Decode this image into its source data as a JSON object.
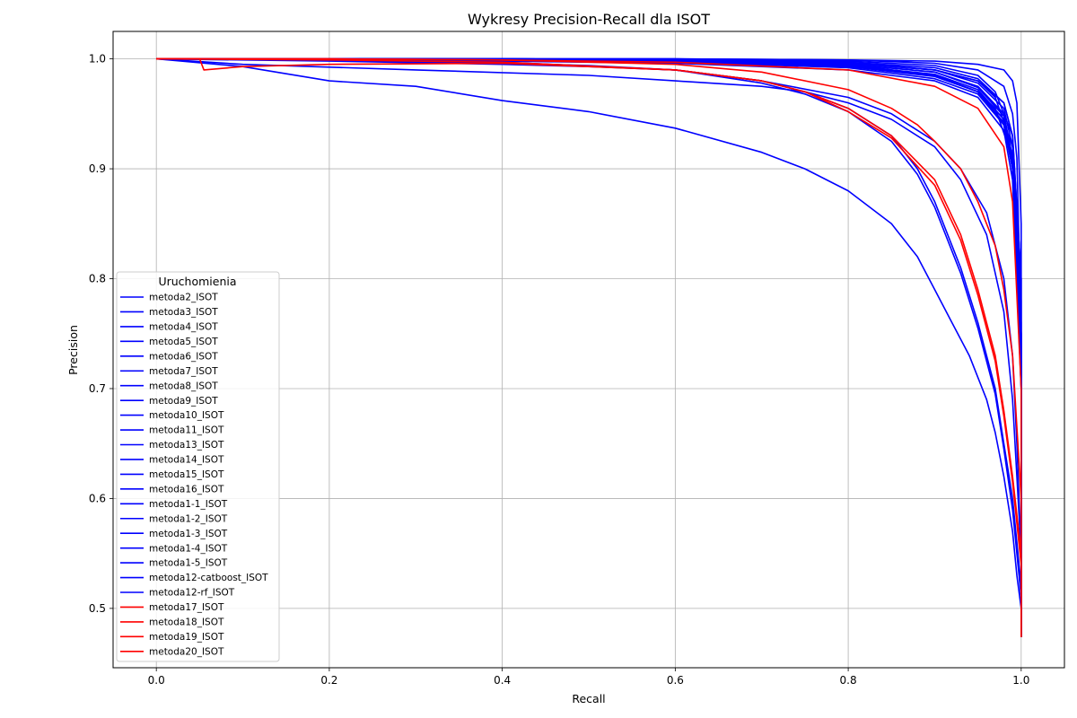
{
  "chart_data": {
    "type": "line",
    "title": "Wykresy Precision-Recall dla ISOT",
    "xlabel": "Recall",
    "ylabel": "Precision",
    "xlim": [
      -0.05,
      1.05
    ],
    "ylim": [
      0.446,
      1.025
    ],
    "xticks": [
      0.0,
      0.2,
      0.4,
      0.6,
      0.8,
      1.0
    ],
    "xtick_labels": [
      "0.0",
      "0.2",
      "0.4",
      "0.6",
      "0.8",
      "1.0"
    ],
    "yticks": [
      0.5,
      0.6,
      0.7,
      0.8,
      0.9,
      1.0
    ],
    "ytick_labels": [
      "0.5",
      "0.6",
      "0.7",
      "0.8",
      "0.9",
      "1.0"
    ],
    "grid": true,
    "legend": {
      "title": "Uruchomienia",
      "placement": "center-left"
    },
    "colors": {
      "blue": "#0000ff",
      "red": "#ff0000"
    },
    "series": [
      {
        "name": "metoda2_ISOT",
        "color": "#0000ff",
        "x": [
          0,
          0.2,
          0.4,
          0.6,
          0.7,
          0.8,
          0.85,
          0.9,
          0.93,
          0.96,
          0.98,
          0.99,
          0.995,
          1.0,
          1.0
        ],
        "y": [
          1.0,
          0.999,
          0.997,
          0.99,
          0.98,
          0.965,
          0.95,
          0.925,
          0.9,
          0.86,
          0.8,
          0.73,
          0.65,
          0.55,
          0.474
        ]
      },
      {
        "name": "metoda3_ISOT",
        "color": "#0000ff",
        "x": [
          0,
          0.2,
          0.4,
          0.6,
          0.7,
          0.8,
          0.9,
          0.95,
          0.98,
          0.99,
          1.0,
          1.0
        ],
        "y": [
          1.0,
          1.0,
          1.0,
          0.999,
          0.998,
          0.996,
          0.99,
          0.98,
          0.96,
          0.93,
          0.8,
          0.474
        ]
      },
      {
        "name": "metoda4_ISOT",
        "color": "#0000ff",
        "x": [
          0,
          0.2,
          0.4,
          0.6,
          0.8,
          0.9,
          0.95,
          0.98,
          0.99,
          0.995,
          1.0,
          1.0
        ],
        "y": [
          1.0,
          1.0,
          1.0,
          1.0,
          0.999,
          0.996,
          0.99,
          0.975,
          0.95,
          0.91,
          0.75,
          0.474
        ]
      },
      {
        "name": "metoda5_ISOT",
        "color": "#0000ff",
        "x": [
          0,
          0.2,
          0.4,
          0.6,
          0.8,
          0.9,
          0.95,
          0.97,
          0.99,
          1.0,
          1.0
        ],
        "y": [
          1.0,
          1.0,
          1.0,
          0.999,
          0.997,
          0.99,
          0.98,
          0.965,
          0.92,
          0.75,
          0.474
        ]
      },
      {
        "name": "metoda6_ISOT",
        "color": "#0000ff",
        "x": [
          0,
          0.2,
          0.4,
          0.6,
          0.8,
          0.9,
          0.95,
          0.98,
          0.99,
          1.0,
          1.0
        ],
        "y": [
          1.0,
          1.0,
          0.999,
          0.998,
          0.995,
          0.985,
          0.97,
          0.945,
          0.9,
          0.7,
          0.474
        ]
      },
      {
        "name": "metoda7_ISOT",
        "color": "#0000ff",
        "x": [
          0,
          0.1,
          0.3,
          0.5,
          0.6,
          0.7,
          0.75,
          0.8,
          0.85,
          0.9,
          0.93,
          0.96,
          0.98,
          0.99,
          1.0,
          1.0
        ],
        "y": [
          1.0,
          0.995,
          0.99,
          0.985,
          0.98,
          0.975,
          0.97,
          0.96,
          0.945,
          0.92,
          0.89,
          0.84,
          0.77,
          0.69,
          0.55,
          0.474
        ]
      },
      {
        "name": "metoda8_ISOT",
        "color": "#0000ff",
        "x": [
          0,
          0.2,
          0.4,
          0.6,
          0.8,
          0.9,
          0.95,
          0.98,
          0.99,
          1.0,
          1.0
        ],
        "y": [
          1.0,
          1.0,
          1.0,
          0.999,
          0.997,
          0.992,
          0.982,
          0.96,
          0.93,
          0.78,
          0.474
        ]
      },
      {
        "name": "metoda9_ISOT",
        "color": "#0000ff",
        "x": [
          0,
          0.2,
          0.4,
          0.6,
          0.8,
          0.9,
          0.95,
          0.98,
          0.99,
          1.0,
          1.0
        ],
        "y": [
          1.0,
          0.999,
          0.998,
          0.996,
          0.99,
          0.98,
          0.965,
          0.935,
          0.89,
          0.7,
          0.474
        ]
      },
      {
        "name": "metoda10_ISOT",
        "color": "#0000ff",
        "x": [
          0,
          0.2,
          0.4,
          0.6,
          0.8,
          0.9,
          0.95,
          0.97,
          0.99,
          1.0,
          1.0
        ],
        "y": [
          1.0,
          1.0,
          1.0,
          0.999,
          0.998,
          0.994,
          0.985,
          0.97,
          0.93,
          0.8,
          0.474
        ]
      },
      {
        "name": "metoda11_ISOT",
        "color": "#0000ff",
        "x": [
          0,
          0.2,
          0.4,
          0.6,
          0.8,
          0.9,
          0.95,
          0.98,
          0.99,
          1.0,
          1.0
        ],
        "y": [
          1.0,
          1.0,
          0.999,
          0.998,
          0.994,
          0.985,
          0.97,
          0.94,
          0.9,
          0.72,
          0.474
        ]
      },
      {
        "name": "metoda13_ISOT",
        "color": "#0000ff",
        "x": [
          0,
          0.1,
          0.2,
          0.3,
          0.4,
          0.5,
          0.6,
          0.7,
          0.75,
          0.8,
          0.85,
          0.88,
          0.9,
          0.92,
          0.94,
          0.96,
          0.97,
          0.98,
          0.99,
          0.995,
          1.0,
          1.0
        ],
        "y": [
          1.0,
          0.993,
          0.98,
          0.975,
          0.962,
          0.952,
          0.937,
          0.915,
          0.9,
          0.88,
          0.85,
          0.82,
          0.79,
          0.76,
          0.73,
          0.69,
          0.66,
          0.62,
          0.57,
          0.53,
          0.5,
          0.474
        ]
      },
      {
        "name": "metoda14_ISOT",
        "color": "#0000ff",
        "x": [
          0,
          0.2,
          0.4,
          0.6,
          0.8,
          0.9,
          0.95,
          0.98,
          0.99,
          0.995,
          1.0,
          1.0
        ],
        "y": [
          1.0,
          1.0,
          1.0,
          1.0,
          0.999,
          0.998,
          0.995,
          0.99,
          0.98,
          0.96,
          0.85,
          0.474
        ]
      },
      {
        "name": "metoda15_ISOT",
        "color": "#0000ff",
        "x": [
          0,
          0.2,
          0.4,
          0.6,
          0.8,
          0.9,
          0.95,
          0.97,
          0.99,
          1.0,
          1.0
        ],
        "y": [
          1.0,
          1.0,
          0.999,
          0.997,
          0.993,
          0.985,
          0.97,
          0.955,
          0.91,
          0.75,
          0.474
        ]
      },
      {
        "name": "metoda16_ISOT",
        "color": "#0000ff",
        "x": [
          0,
          0.2,
          0.4,
          0.6,
          0.8,
          0.9,
          0.95,
          0.98,
          0.99,
          1.0,
          1.0
        ],
        "y": [
          1.0,
          1.0,
          1.0,
          0.999,
          0.996,
          0.99,
          0.978,
          0.955,
          0.92,
          0.76,
          0.474
        ]
      },
      {
        "name": "metoda1-1_ISOT",
        "color": "#0000ff",
        "x": [
          0,
          0.2,
          0.4,
          0.6,
          0.8,
          0.9,
          0.95,
          0.98,
          0.99,
          1.0,
          1.0
        ],
        "y": [
          1.0,
          1.0,
          0.999,
          0.997,
          0.992,
          0.982,
          0.968,
          0.94,
          0.9,
          0.72,
          0.474
        ]
      },
      {
        "name": "metoda1-2_ISOT",
        "color": "#0000ff",
        "x": [
          0,
          0.2,
          0.4,
          0.6,
          0.8,
          0.9,
          0.95,
          0.98,
          0.99,
          1.0,
          1.0
        ],
        "y": [
          1.0,
          1.0,
          0.999,
          0.998,
          0.994,
          0.986,
          0.972,
          0.945,
          0.905,
          0.73,
          0.474
        ]
      },
      {
        "name": "metoda1-3_ISOT",
        "color": "#0000ff",
        "x": [
          0,
          0.2,
          0.4,
          0.6,
          0.8,
          0.9,
          0.95,
          0.98,
          0.99,
          1.0,
          1.0
        ],
        "y": [
          1.0,
          1.0,
          1.0,
          0.998,
          0.995,
          0.988,
          0.975,
          0.95,
          0.91,
          0.74,
          0.474
        ]
      },
      {
        "name": "metoda1-4_ISOT",
        "color": "#0000ff",
        "x": [
          0,
          0.2,
          0.4,
          0.6,
          0.8,
          0.9,
          0.95,
          0.98,
          0.99,
          1.0,
          1.0
        ],
        "y": [
          1.0,
          1.0,
          0.999,
          0.997,
          0.993,
          0.984,
          0.97,
          0.942,
          0.902,
          0.72,
          0.474
        ]
      },
      {
        "name": "metoda1-5_ISOT",
        "color": "#0000ff",
        "x": [
          0,
          0.2,
          0.4,
          0.6,
          0.8,
          0.9,
          0.95,
          0.98,
          0.99,
          1.0,
          1.0
        ],
        "y": [
          1.0,
          1.0,
          1.0,
          0.999,
          0.995,
          0.988,
          0.974,
          0.948,
          0.91,
          0.74,
          0.474
        ]
      },
      {
        "name": "metoda12-catboost_ISOT",
        "color": "#0000ff",
        "x": [
          0,
          0.2,
          0.4,
          0.5,
          0.6,
          0.7,
          0.75,
          0.8,
          0.85,
          0.88,
          0.9,
          0.93,
          0.95,
          0.97,
          0.98,
          0.99,
          1.0,
          1.0
        ],
        "y": [
          1.0,
          0.998,
          0.995,
          0.993,
          0.99,
          0.98,
          0.97,
          0.955,
          0.93,
          0.9,
          0.87,
          0.81,
          0.76,
          0.7,
          0.65,
          0.6,
          0.52,
          0.474
        ]
      },
      {
        "name": "metoda12-rf_ISOT",
        "color": "#0000ff",
        "x": [
          0,
          0.2,
          0.4,
          0.5,
          0.6,
          0.7,
          0.75,
          0.8,
          0.85,
          0.88,
          0.9,
          0.93,
          0.95,
          0.97,
          0.98,
          0.99,
          1.0,
          1.0
        ],
        "y": [
          1.0,
          0.999,
          0.996,
          0.994,
          0.99,
          0.978,
          0.968,
          0.952,
          0.925,
          0.895,
          0.865,
          0.805,
          0.755,
          0.695,
          0.645,
          0.59,
          0.51,
          0.474
        ]
      },
      {
        "name": "metoda17_ISOT",
        "color": "#ff0000",
        "x": [
          0,
          0.05,
          0.055,
          0.1,
          0.2,
          0.4,
          0.6,
          0.7,
          0.75,
          0.8,
          0.85,
          0.9,
          0.93,
          0.95,
          0.97,
          0.98,
          0.99,
          1.0,
          1.0
        ],
        "y": [
          1.0,
          1.0,
          0.99,
          0.993,
          0.995,
          0.996,
          0.99,
          0.98,
          0.97,
          0.955,
          0.93,
          0.89,
          0.84,
          0.79,
          0.73,
          0.68,
          0.62,
          0.55,
          0.474
        ]
      },
      {
        "name": "metoda18_ISOT",
        "color": "#ff0000",
        "x": [
          0,
          0.2,
          0.4,
          0.6,
          0.7,
          0.75,
          0.8,
          0.85,
          0.9,
          0.93,
          0.95,
          0.97,
          0.98,
          0.99,
          1.0,
          1.0
        ],
        "y": [
          1.0,
          0.999,
          0.997,
          0.99,
          0.98,
          0.97,
          0.952,
          0.928,
          0.885,
          0.835,
          0.785,
          0.725,
          0.675,
          0.615,
          0.54,
          0.474
        ]
      },
      {
        "name": "metoda19_ISOT",
        "color": "#ff0000",
        "x": [
          0,
          0.2,
          0.4,
          0.6,
          0.7,
          0.8,
          0.85,
          0.88,
          0.9,
          0.93,
          0.95,
          0.97,
          0.98,
          0.99,
          1.0,
          1.0
        ],
        "y": [
          1.0,
          1.0,
          0.999,
          0.995,
          0.988,
          0.972,
          0.955,
          0.94,
          0.925,
          0.9,
          0.87,
          0.83,
          0.79,
          0.73,
          0.6,
          0.474
        ]
      },
      {
        "name": "metoda20_ISOT",
        "color": "#ff0000",
        "x": [
          0,
          0.2,
          0.4,
          0.6,
          0.8,
          0.9,
          0.95,
          0.98,
          0.99,
          1.0,
          1.0
        ],
        "y": [
          1.0,
          1.0,
          0.999,
          0.997,
          0.99,
          0.975,
          0.955,
          0.92,
          0.87,
          0.7,
          0.474
        ]
      }
    ]
  }
}
